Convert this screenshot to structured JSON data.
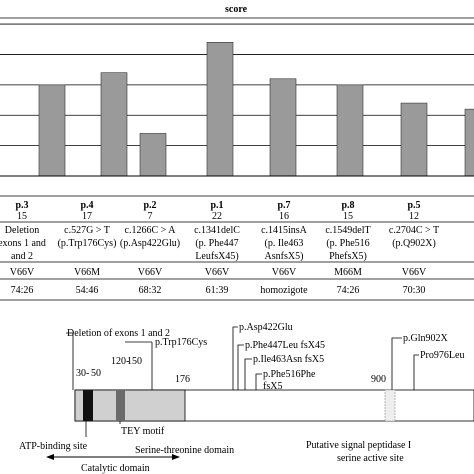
{
  "chart_data": {
    "type": "bar",
    "title": "score",
    "categories": [
      "",
      "p.3",
      "p.4",
      "p.2",
      "p.1",
      "p.7",
      "p.8",
      "p.5",
      ""
    ],
    "values": [
      16,
      15,
      17,
      7,
      22,
      16,
      15,
      12,
      11
    ],
    "ylim": [
      0,
      26
    ],
    "grid": true
  },
  "table": {
    "rows": [
      {
        "patient": "p.3",
        "score": "15",
        "mutation": [
          "Deletion",
          "exons 1 and",
          "and 2"
        ],
        "polymorphism": "V66V",
        "ratio": "74:26"
      },
      {
        "patient": "p.4",
        "score": "17",
        "mutation": [
          "c.527G > T",
          "(p.Trp176Cys)"
        ],
        "polymorphism": "V66M",
        "ratio": "54:46"
      },
      {
        "patient": "p.2",
        "score": "7",
        "mutation": [
          "c.1266C > A",
          "(p.Asp422Glu)"
        ],
        "polymorphism": "V66V",
        "ratio": "68:32"
      },
      {
        "patient": "p.1",
        "score": "22",
        "mutation": [
          "c.1341delC",
          "(p. Phe447",
          "LeufsX45)"
        ],
        "polymorphism": "V66V",
        "ratio": "61:39"
      },
      {
        "patient": "p.7",
        "score": "16",
        "mutation": [
          "c.1415insA",
          "(p. Ile463",
          "AsnfsX5)"
        ],
        "polymorphism": "V66V",
        "ratio": "homozigote"
      },
      {
        "patient": "p.8",
        "score": "15",
        "mutation": [
          "c.1549delT",
          "(p. Phe516",
          "PhefsX5)"
        ],
        "polymorphism": "M66M",
        "ratio": "74:26"
      },
      {
        "patient": "p.5",
        "score": "12",
        "mutation": [
          "c.2704C > T",
          "(p.Q902X)"
        ],
        "polymorphism": "V66V",
        "ratio": "70:30"
      }
    ]
  },
  "diagram": {
    "mutations": {
      "deletion": "Deletion of exons 1 and 2",
      "trp176": "p.Trp176Cys",
      "asp422": "p.Asp422Glu",
      "phe447": "p.Phe447Leu fsX45",
      "ile463": "p.Ile463Asn fsX5",
      "phe516a": "p.Phe516Phe",
      "phe516b": "fsX5",
      "gln902": "p.Gln902X",
      "pro976": "Pro976Leu"
    },
    "positions": {
      "p30": "30-",
      "p50": "50",
      "p120": "120-",
      "p150": "150",
      "p176": "176",
      "p900": "900"
    },
    "labels": {
      "tey": "TEY motif",
      "atp": "ATP-binding site",
      "serthr": "Serine-threonine domain",
      "catalytic": "Catalytic domain",
      "signal1": "Putative signal peptidase I",
      "signal2": "serine active site"
    }
  }
}
